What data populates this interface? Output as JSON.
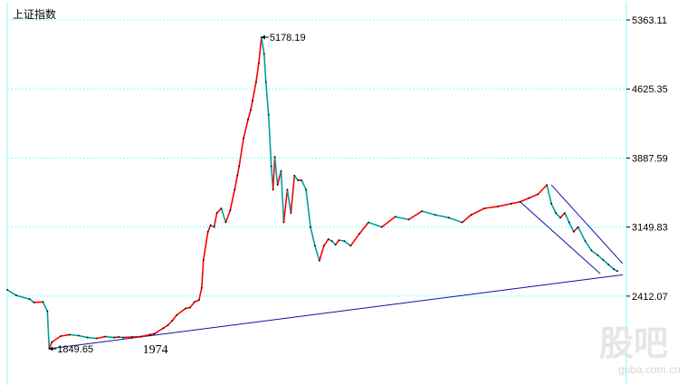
{
  "chart_data": {
    "type": "line",
    "title": "上证指数",
    "yticks": [
      "5363.11",
      "4625.35",
      "3887.59",
      "3149.83",
      "2412.07"
    ],
    "ylim": [
      1849.65,
      5363.11
    ],
    "x": [
      0,
      10,
      25,
      30,
      40,
      45,
      47,
      50,
      60,
      70,
      80,
      90,
      100,
      110,
      120,
      125,
      130,
      140,
      150,
      160,
      165,
      175,
      180,
      185,
      190,
      200,
      205,
      210,
      215,
      218,
      220,
      225,
      228,
      232,
      235,
      240,
      245,
      250,
      255,
      258,
      260,
      265,
      270,
      273,
      275,
      279,
      282,
      285,
      288,
      290,
      293,
      296,
      298,
      300,
      303,
      307,
      310,
      314,
      318,
      322,
      326,
      330,
      335,
      340,
      345,
      350,
      355,
      360,
      364,
      368,
      372,
      378,
      385,
      395,
      405,
      420,
      435,
      450,
      465,
      480,
      495,
      510,
      520,
      535,
      550,
      565,
      575,
      585,
      595,
      605,
      610,
      615,
      620,
      625,
      630,
      635,
      640,
      648,
      655,
      662,
      668,
      674,
      680,
      684
    ],
    "values": [
      2480,
      2420,
      2380,
      2345,
      2350,
      2250,
      1850,
      1920,
      1985,
      2000,
      1990,
      1970,
      1960,
      1980,
      1970,
      1975,
      1970,
      1975,
      1980,
      2000,
      2010,
      2070,
      2100,
      2150,
      2210,
      2280,
      2290,
      2350,
      2370,
      2500,
      2800,
      3100,
      3170,
      3150,
      3300,
      3350,
      3200,
      3330,
      3550,
      3700,
      3800,
      4100,
      4300,
      4400,
      4500,
      4700,
      4900,
      5178.19,
      5000,
      4700,
      4350,
      3800,
      3550,
      3900,
      3600,
      3750,
      3200,
      3550,
      3300,
      3700,
      3650,
      3650,
      3550,
      3150,
      2950,
      2790,
      2950,
      3020,
      3000,
      2960,
      3010,
      3000,
      2950,
      3080,
      3200,
      3150,
      3260,
      3230,
      3320,
      3280,
      3250,
      3200,
      3280,
      3350,
      3370,
      3400,
      3420,
      3460,
      3500,
      3600,
      3400,
      3300,
      3250,
      3300,
      3200,
      3100,
      3150,
      3000,
      2900,
      2850,
      2800,
      2750,
      2700,
      2680
    ],
    "annotations": [
      {
        "label": "5178.19",
        "x": 285,
        "y": 5178.19
      },
      {
        "label": "1849.65",
        "x": 47,
        "y": 1849.65
      },
      {
        "label": "1974",
        "x": 160,
        "y": 1974
      }
    ],
    "trendlines": [
      {
        "from": [
          47,
          1849.65
        ],
        "to": [
          690,
          2640
        ]
      },
      {
        "from": [
          575,
          3420
        ],
        "to": [
          665,
          2650
        ]
      },
      {
        "from": [
          610,
          3600
        ],
        "to": [
          690,
          2760
        ]
      }
    ],
    "grid": true,
    "colors": {
      "line": "#000000",
      "up": "#ff0000",
      "down": "#00a0a0",
      "grid": "#80ffff",
      "axis": "#80ffff",
      "trend": "#1010a0"
    }
  },
  "watermark": {
    "big": "股吧",
    "small": "guba.com.cn"
  }
}
